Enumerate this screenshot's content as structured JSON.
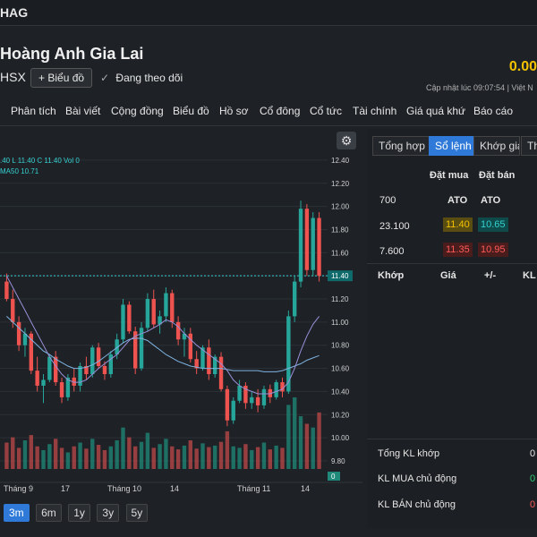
{
  "header": {
    "ticker": "HAG"
  },
  "company": {
    "name": "Hoàng Anh Gia Lai",
    "exchange": "HSX",
    "chart_button": "Biểu đồ",
    "follow_label": "Đang theo dõi",
    "price": "0.00",
    "update_text": "Cập nhật lúc  09:07:54 | Việt N"
  },
  "nav": [
    "Phân tích",
    "Bài viết",
    "Cộng đồng",
    "Biểu đồ",
    "Hồ sơ",
    "Cổ đông",
    "Cổ tức",
    "Tài chính",
    "Giá quá khứ",
    "Báo cáo"
  ],
  "chart": {
    "legend_ohlc": ".40 L 11.40 C 11.40 Vol 0",
    "legend_ma": "MA50 10.71",
    "current_price_label": "11.40",
    "ranges": [
      "3m",
      "6m",
      "1y",
      "3y",
      "5y"
    ],
    "active_range": "3m"
  },
  "chart_data": {
    "type": "candlestick",
    "y_ticks": [
      12.4,
      12.2,
      12.0,
      11.8,
      11.6,
      11.4,
      11.2,
      11.0,
      10.8,
      10.6,
      10.4,
      10.2,
      10.0,
      9.8
    ],
    "ylim": [
      9.73,
      12.5
    ],
    "x_labels": [
      "Tháng 9",
      "17",
      "Tháng 10",
      "14",
      "Tháng 11",
      "14"
    ],
    "last_close": 11.4,
    "ma50_last": 10.71,
    "candles": [
      [
        11.35,
        11.42,
        11.18,
        11.2
      ],
      [
        11.2,
        11.28,
        10.95,
        11.0
      ],
      [
        11.0,
        11.05,
        10.75,
        10.8
      ],
      [
        10.8,
        10.95,
        10.7,
        10.9
      ],
      [
        10.9,
        10.92,
        10.55,
        10.58
      ],
      [
        10.58,
        10.7,
        10.4,
        10.45
      ],
      [
        10.45,
        10.55,
        10.3,
        10.5
      ],
      [
        10.5,
        10.72,
        10.48,
        10.7
      ],
      [
        10.7,
        10.75,
        10.45,
        10.48
      ],
      [
        10.48,
        10.52,
        10.3,
        10.35
      ],
      [
        10.35,
        10.55,
        10.32,
        10.52
      ],
      [
        10.52,
        10.6,
        10.4,
        10.45
      ],
      [
        10.45,
        10.65,
        10.4,
        10.62
      ],
      [
        10.62,
        10.7,
        10.5,
        10.55
      ],
      [
        10.55,
        10.8,
        10.52,
        10.78
      ],
      [
        10.78,
        10.82,
        10.6,
        10.62
      ],
      [
        10.62,
        10.66,
        10.5,
        10.55
      ],
      [
        10.55,
        10.75,
        10.52,
        10.72
      ],
      [
        10.72,
        10.9,
        10.68,
        10.85
      ],
      [
        10.85,
        11.2,
        10.82,
        11.15
      ],
      [
        11.15,
        11.18,
        10.9,
        10.92
      ],
      [
        10.92,
        10.96,
        10.55,
        10.6
      ],
      [
        10.6,
        11.0,
        10.58,
        10.95
      ],
      [
        10.95,
        11.25,
        10.92,
        11.2
      ],
      [
        11.2,
        11.28,
        10.95,
        10.98
      ],
      [
        10.98,
        11.1,
        10.9,
        11.05
      ],
      [
        11.05,
        11.3,
        11.0,
        11.25
      ],
      [
        11.25,
        11.28,
        10.95,
        11.0
      ],
      [
        11.0,
        11.05,
        10.8,
        10.85
      ],
      [
        10.85,
        10.95,
        10.7,
        10.9
      ],
      [
        10.9,
        10.95,
        10.65,
        10.68
      ],
      [
        10.68,
        10.75,
        10.55,
        10.6
      ],
      [
        10.6,
        10.8,
        10.58,
        10.78
      ],
      [
        10.78,
        10.85,
        10.5,
        10.55
      ],
      [
        10.55,
        10.72,
        10.52,
        10.7
      ],
      [
        10.7,
        10.74,
        10.4,
        10.42
      ],
      [
        10.42,
        10.45,
        10.1,
        10.15
      ],
      [
        10.15,
        10.35,
        10.12,
        10.32
      ],
      [
        10.32,
        10.5,
        10.3,
        10.45
      ],
      [
        10.45,
        10.48,
        10.25,
        10.3
      ],
      [
        10.3,
        10.4,
        10.25,
        10.35
      ],
      [
        10.35,
        10.42,
        10.22,
        10.28
      ],
      [
        10.28,
        10.45,
        10.25,
        10.42
      ],
      [
        10.42,
        10.46,
        10.3,
        10.35
      ],
      [
        10.35,
        10.5,
        10.33,
        10.48
      ],
      [
        10.48,
        10.52,
        10.35,
        10.4
      ],
      [
        10.4,
        11.1,
        10.38,
        11.05
      ],
      [
        11.05,
        11.4,
        11.0,
        11.35
      ],
      [
        11.35,
        12.05,
        11.3,
        11.98
      ],
      [
        11.98,
        12.02,
        11.4,
        11.45
      ],
      [
        11.45,
        11.95,
        11.4,
        11.9
      ],
      [
        11.9,
        11.95,
        11.35,
        11.4
      ]
    ],
    "volumes": [
      35,
      42,
      28,
      38,
      45,
      30,
      25,
      33,
      40,
      28,
      22,
      30,
      35,
      27,
      40,
      32,
      25,
      30,
      38,
      55,
      42,
      30,
      36,
      48,
      28,
      33,
      40,
      30,
      26,
      31,
      38,
      27,
      34,
      29,
      31,
      36,
      50,
      30,
      28,
      33,
      25,
      29,
      35,
      26,
      31,
      28,
      85,
      95,
      70,
      60,
      55,
      75
    ],
    "ma50": [
      11.05,
      11.0,
      10.95,
      10.9,
      10.85,
      10.8,
      10.75,
      10.72,
      10.68,
      10.65,
      10.62,
      10.6,
      10.6,
      10.61,
      10.63,
      10.66,
      10.7,
      10.74,
      10.78,
      10.82,
      10.85,
      10.86,
      10.86,
      10.84,
      10.8,
      10.76,
      10.72,
      10.69,
      10.66,
      10.64,
      10.62,
      10.61,
      10.6,
      10.6,
      10.6,
      10.6,
      10.59,
      10.58,
      10.58,
      10.58,
      10.58,
      10.58,
      10.57,
      10.57,
      10.57,
      10.58,
      10.6,
      10.62,
      10.64,
      10.67,
      10.69,
      10.71
    ],
    "ma_short": [
      11.4,
      11.3,
      11.2,
      11.1,
      11.0,
      10.9,
      10.8,
      10.7,
      10.62,
      10.55,
      10.5,
      10.48,
      10.48,
      10.5,
      10.55,
      10.6,
      10.64,
      10.68,
      10.72,
      10.78,
      10.84,
      10.88,
      10.9,
      10.92,
      10.95,
      10.98,
      11.02,
      11.0,
      10.96,
      10.9,
      10.85,
      10.8,
      10.76,
      10.72,
      10.68,
      10.64,
      10.58,
      10.5,
      10.45,
      10.42,
      10.4,
      10.38,
      10.38,
      10.38,
      10.4,
      10.42,
      10.48,
      10.6,
      10.75,
      10.88,
      10.98,
      11.05
    ]
  },
  "panel": {
    "tabs": [
      "Tổng hợp",
      "Sổ lệnh",
      "Khớp giá",
      "Th"
    ],
    "active_tab": "Sổ lệnh",
    "tab_cut_label": "Khớp giá",
    "headers": {
      "buy": "Đặt mua",
      "sell": "Đặt bán"
    },
    "rows": [
      {
        "vol": "700",
        "buy": "ATO",
        "sell": "ATO"
      },
      {
        "vol": "23.100",
        "buy": "11.40",
        "sell": "10.65"
      },
      {
        "vol": "7.600",
        "buy": "11.35",
        "sell": "10.95"
      }
    ],
    "match_headers": {
      "match": "Khớp",
      "price": "Giá",
      "change": "+/-",
      "vol": "KL"
    },
    "summary": [
      {
        "label": "Tổng KL khớp",
        "value": "0"
      },
      {
        "label": "KL MUA chủ động",
        "value": "0"
      },
      {
        "label": "KL BÁN chủ động",
        "value": "0"
      }
    ]
  }
}
